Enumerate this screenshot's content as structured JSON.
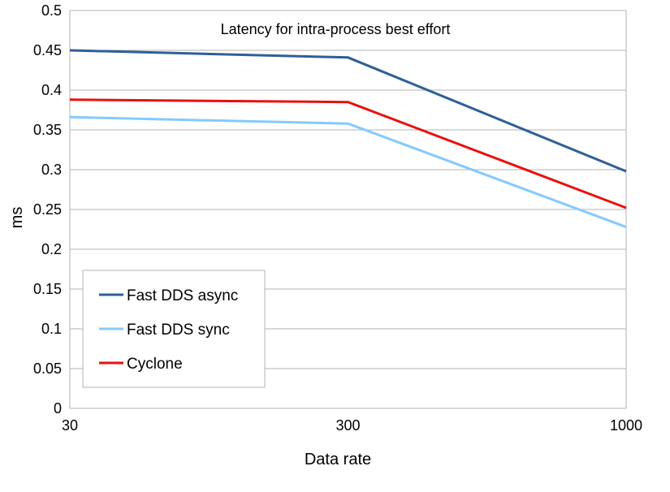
{
  "chart_data": {
    "type": "line",
    "title": "Latency for intra-process best effort",
    "xlabel": "Data rate",
    "ylabel": "ms",
    "categories": [
      "30",
      "300",
      "1000"
    ],
    "ylim": [
      0,
      0.5
    ],
    "yticks": [
      "0",
      "0.05",
      "0.1",
      "0.15",
      "0.2",
      "0.25",
      "0.3",
      "0.35",
      "0.4",
      "0.45",
      "0.5"
    ],
    "grid": true,
    "legend_position": "bottom-left",
    "series": [
      {
        "name": "Fast DDS async",
        "color": "#2f5f96",
        "values": [
          0.45,
          0.441,
          0.298
        ]
      },
      {
        "name": "Fast DDS sync",
        "color": "#83caff",
        "values": [
          0.366,
          0.358,
          0.228
        ]
      },
      {
        "name": "Cyclone",
        "color": "#e8110e",
        "values": [
          0.388,
          0.385,
          0.252
        ]
      }
    ]
  }
}
